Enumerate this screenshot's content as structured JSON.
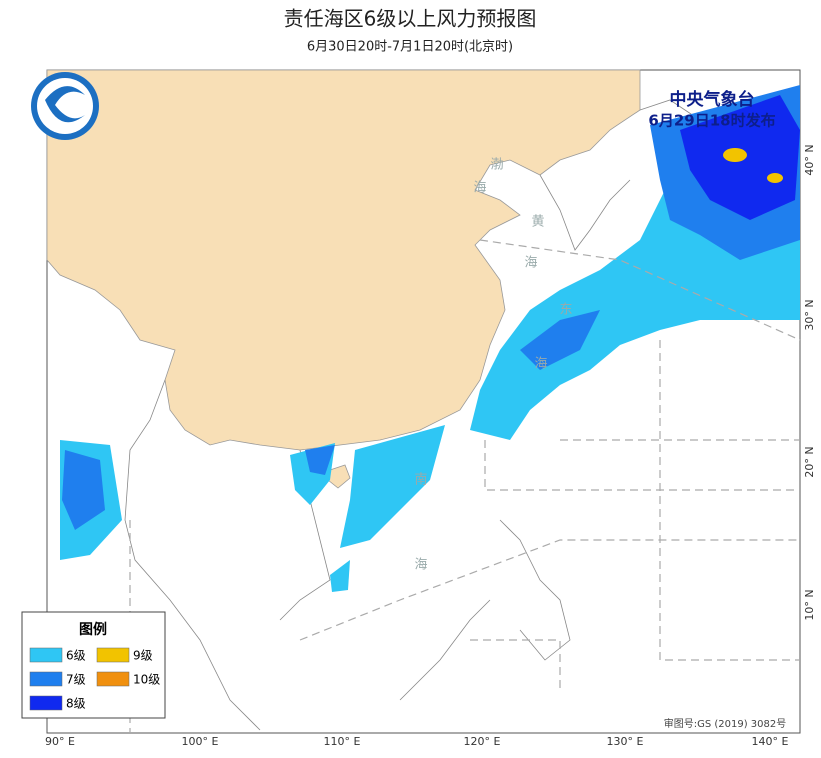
{
  "header": {
    "title": "责任海区6级以上风力预报图",
    "subtitle": "6月30日20时-7月1日20时(北京时)"
  },
  "issuer": {
    "name": "中央气象台",
    "time": "6月29日18时发布"
  },
  "legend": {
    "title": "图例",
    "items": [
      {
        "label": "6级",
        "color": "#2fc6f4"
      },
      {
        "label": "9级",
        "color": "#f2c300"
      },
      {
        "label": "7级",
        "color": "#1f7fee"
      },
      {
        "label": "10级",
        "color": "#f0900f"
      },
      {
        "label": "8级",
        "color": "#1029ef"
      }
    ]
  },
  "axes": {
    "longitude": [
      "90° E",
      "100° E",
      "110° E",
      "120° E",
      "130° E",
      "140° E"
    ],
    "latitude": [
      "40° N",
      "30° N",
      "20° N",
      "10° N"
    ]
  },
  "seas": [
    {
      "chars": [
        "渤",
        "海"
      ]
    },
    {
      "chars": [
        "黄",
        "海"
      ]
    },
    {
      "chars": [
        "东",
        "海"
      ]
    },
    {
      "chars": [
        "南",
        "海"
      ]
    }
  ],
  "approval": "审图号:GS (2019) 3082号"
}
